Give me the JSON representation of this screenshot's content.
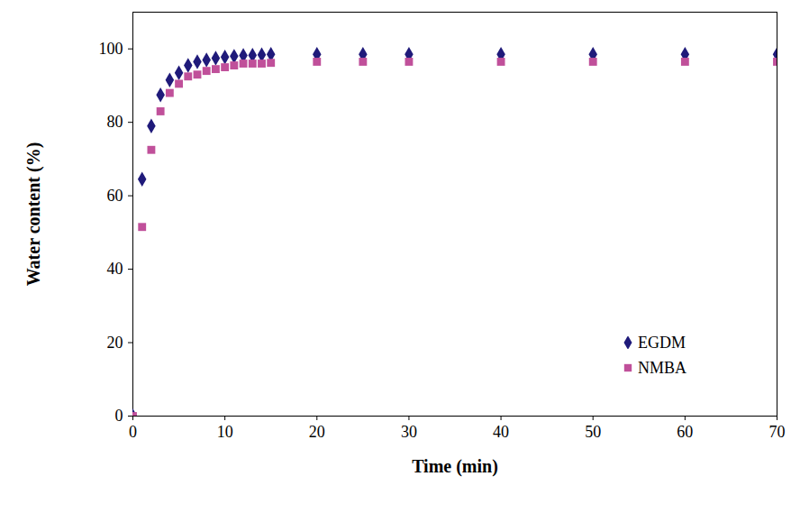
{
  "chart_data": {
    "type": "scatter",
    "x_label": "Time (min)",
    "y_label": "Water content (%)",
    "x": [
      0,
      1,
      2,
      3,
      4,
      5,
      6,
      7,
      8,
      9,
      10,
      11,
      12,
      13,
      14,
      15,
      20,
      25,
      30,
      40,
      50,
      60,
      70
    ],
    "series": [
      {
        "name": "EGDM",
        "color": "#1f1a7a",
        "marker": "diamond",
        "values": [
          0,
          64.5,
          79,
          87.5,
          91.5,
          93.5,
          95.5,
          96.5,
          97,
          97.5,
          97.8,
          98,
          98.2,
          98.3,
          98.4,
          98.5,
          98.5,
          98.5,
          98.5,
          98.5,
          98.5,
          98.5,
          98.5
        ]
      },
      {
        "name": "NMBA",
        "color": "#c0509a",
        "marker": "square",
        "values": [
          0,
          51.5,
          72.5,
          83,
          88,
          90.5,
          92.5,
          93,
          94,
          94.5,
          95,
          95.5,
          96,
          96,
          96,
          96.2,
          96.5,
          96.5,
          96.5,
          96.5,
          96.5,
          96.5,
          96.5
        ]
      }
    ],
    "xlim": [
      0,
      70
    ],
    "xticks": [
      0,
      10,
      20,
      30,
      40,
      50,
      60,
      70
    ],
    "ylim": [
      0,
      110
    ],
    "yticks": [
      0,
      20,
      40,
      60,
      80,
      100
    ],
    "grid": false,
    "legend": "right"
  }
}
